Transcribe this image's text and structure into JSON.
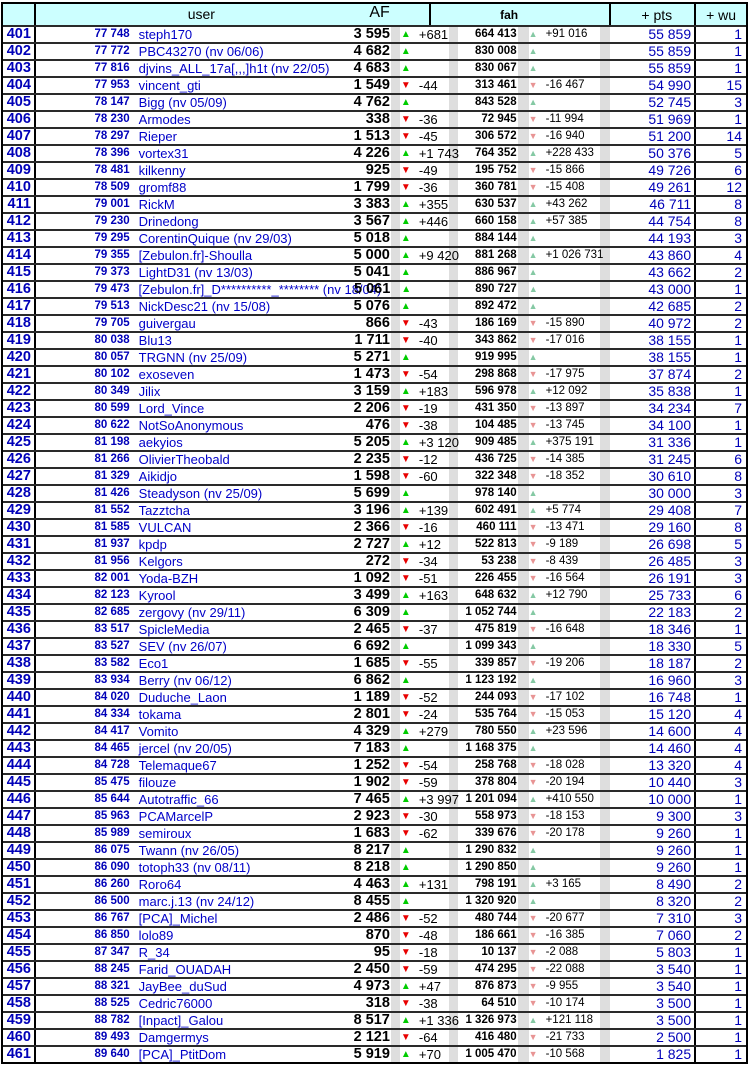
{
  "header": {
    "user": "user",
    "af": "AF",
    "fah": "fah",
    "pts": "+ pts",
    "wu": "+ wu"
  },
  "colors": {
    "header_bg": "#ccffff",
    "link_blue": "#0000c8",
    "rank_blue": "#0000b8",
    "af_up": "#00cc00",
    "af_down": "#e80000",
    "fah_up": "#85c9a4",
    "fah_down": "#e89494",
    "stripe_gray": "#dedede"
  },
  "icons": {
    "up": "up-arrow-icon",
    "down": "down-arrow-icon"
  },
  "rows": [
    {
      "rank": "401",
      "id": "77 748",
      "user": "steph170",
      "af": "3 595",
      "af_dir": "up",
      "af_delta": "+681",
      "fah": "664 413",
      "fah_dir": "up",
      "fah_delta": "+91 016",
      "pts": "55 859",
      "wu": "1"
    },
    {
      "rank": "402",
      "id": "77 772",
      "user": "PBC43270  (nv 06/06)",
      "af": "4 682",
      "af_dir": "up",
      "af_delta": "",
      "fah": "830 008",
      "fah_dir": "up",
      "fah_delta": "",
      "pts": "55 859",
      "wu": "1"
    },
    {
      "rank": "403",
      "id": "77 816",
      "user": "djvins_ALL_17a[,,,]h1t  (nv 22/05)",
      "af": "4 683",
      "af_dir": "up",
      "af_delta": "",
      "fah": "830 067",
      "fah_dir": "up",
      "fah_delta": "",
      "pts": "55 859",
      "wu": "1"
    },
    {
      "rank": "404",
      "id": "77 953",
      "user": "vincent_gti",
      "af": "1 549",
      "af_dir": "down",
      "af_delta": "-44",
      "fah": "313 461",
      "fah_dir": "down",
      "fah_delta": "-16 467",
      "pts": "54 990",
      "wu": "15"
    },
    {
      "rank": "405",
      "id": "78 147",
      "user": "Bigg  (nv 05/09)",
      "af": "4 762",
      "af_dir": "up",
      "af_delta": "",
      "fah": "843 528",
      "fah_dir": "up",
      "fah_delta": "",
      "pts": "52 745",
      "wu": "3"
    },
    {
      "rank": "406",
      "id": "78 230",
      "user": "Armodes",
      "af": "338",
      "af_dir": "down",
      "af_delta": "-36",
      "fah": "72 945",
      "fah_dir": "down",
      "fah_delta": "-11 994",
      "pts": "51 969",
      "wu": "1"
    },
    {
      "rank": "407",
      "id": "78 297",
      "user": "Rieper",
      "af": "1 513",
      "af_dir": "down",
      "af_delta": "-45",
      "fah": "306 572",
      "fah_dir": "down",
      "fah_delta": "-16 940",
      "pts": "51 200",
      "wu": "14"
    },
    {
      "rank": "408",
      "id": "78 396",
      "user": "vortex31",
      "af": "4 226",
      "af_dir": "up",
      "af_delta": "+1 743",
      "fah": "764 352",
      "fah_dir": "up",
      "fah_delta": "+228 433",
      "pts": "50 376",
      "wu": "5"
    },
    {
      "rank": "409",
      "id": "78 481",
      "user": "kilkenny",
      "af": "925",
      "af_dir": "down",
      "af_delta": "-49",
      "fah": "195 752",
      "fah_dir": "down",
      "fah_delta": "-15 866",
      "pts": "49 726",
      "wu": "6"
    },
    {
      "rank": "410",
      "id": "78 509",
      "user": "gromf88",
      "af": "1 799",
      "af_dir": "down",
      "af_delta": "-36",
      "fah": "360 781",
      "fah_dir": "down",
      "fah_delta": "-15 408",
      "pts": "49 261",
      "wu": "12"
    },
    {
      "rank": "411",
      "id": "79 001",
      "user": "RickM",
      "af": "3 383",
      "af_dir": "up",
      "af_delta": "+355",
      "fah": "630 537",
      "fah_dir": "up",
      "fah_delta": "+43 262",
      "pts": "46 711",
      "wu": "8"
    },
    {
      "rank": "412",
      "id": "79 230",
      "user": "Drinedong",
      "af": "3 567",
      "af_dir": "up",
      "af_delta": "+446",
      "fah": "660 158",
      "fah_dir": "up",
      "fah_delta": "+57 385",
      "pts": "44 754",
      "wu": "8"
    },
    {
      "rank": "413",
      "id": "79 295",
      "user": "CorentinQuique  (nv 29/03)",
      "af": "5 018",
      "af_dir": "up",
      "af_delta": "",
      "fah": "884 144",
      "fah_dir": "up",
      "fah_delta": "",
      "pts": "44 193",
      "wu": "3"
    },
    {
      "rank": "414",
      "id": "79 355",
      "user": "[Zebulon.fr]-Shoulla",
      "af": "5 000",
      "af_dir": "up",
      "af_delta": "+9 420",
      "fah": "881 268",
      "fah_dir": "up",
      "fah_delta": "+1 026 731",
      "pts": "43 860",
      "wu": "4"
    },
    {
      "rank": "415",
      "id": "79 373",
      "user": "LightD31  (nv 13/03)",
      "af": "5 041",
      "af_dir": "up",
      "af_delta": "",
      "fah": "886 967",
      "fah_dir": "up",
      "fah_delta": "",
      "pts": "43 662",
      "wu": "2"
    },
    {
      "rank": "416",
      "id": "79 473",
      "user": "[Zebulon.fr]_D**********_********  (nv 18/04)",
      "af": "5 061",
      "af_dir": "up",
      "af_delta": "",
      "fah": "890 727",
      "fah_dir": "up",
      "fah_delta": "",
      "pts": "43 000",
      "wu": "1"
    },
    {
      "rank": "417",
      "id": "79 513",
      "user": "NickDesc21  (nv 15/08)",
      "af": "5 076",
      "af_dir": "up",
      "af_delta": "",
      "fah": "892 472",
      "fah_dir": "up",
      "fah_delta": "",
      "pts": "42 685",
      "wu": "2"
    },
    {
      "rank": "418",
      "id": "79 705",
      "user": "guivergau",
      "af": "866",
      "af_dir": "down",
      "af_delta": "-43",
      "fah": "186 169",
      "fah_dir": "down",
      "fah_delta": "-15 890",
      "pts": "40 972",
      "wu": "2"
    },
    {
      "rank": "419",
      "id": "80 038",
      "user": "Blu13",
      "af": "1 711",
      "af_dir": "down",
      "af_delta": "-40",
      "fah": "343 862",
      "fah_dir": "down",
      "fah_delta": "-17 016",
      "pts": "38 155",
      "wu": "1"
    },
    {
      "rank": "420",
      "id": "80 057",
      "user": "TRGNN  (nv 25/09)",
      "af": "5 271",
      "af_dir": "up",
      "af_delta": "",
      "fah": "919 995",
      "fah_dir": "up",
      "fah_delta": "",
      "pts": "38 155",
      "wu": "1"
    },
    {
      "rank": "421",
      "id": "80 102",
      "user": "exoseven",
      "af": "1 473",
      "af_dir": "down",
      "af_delta": "-54",
      "fah": "298 868",
      "fah_dir": "down",
      "fah_delta": "-17 975",
      "pts": "37 874",
      "wu": "2"
    },
    {
      "rank": "422",
      "id": "80 349",
      "user": "Jilix",
      "af": "3 159",
      "af_dir": "up",
      "af_delta": "+183",
      "fah": "596 978",
      "fah_dir": "up",
      "fah_delta": "+12 092",
      "pts": "35 838",
      "wu": "1"
    },
    {
      "rank": "423",
      "id": "80 599",
      "user": "Lord_Vince",
      "af": "2 206",
      "af_dir": "down",
      "af_delta": "-19",
      "fah": "431 350",
      "fah_dir": "down",
      "fah_delta": "-13 897",
      "pts": "34 234",
      "wu": "7"
    },
    {
      "rank": "424",
      "id": "80 622",
      "user": "NotSoAnonymous",
      "af": "476",
      "af_dir": "down",
      "af_delta": "-38",
      "fah": "104 485",
      "fah_dir": "down",
      "fah_delta": "-13 745",
      "pts": "34 100",
      "wu": "1"
    },
    {
      "rank": "425",
      "id": "81 198",
      "user": "aekyios",
      "af": "5 205",
      "af_dir": "up",
      "af_delta": "+3 120",
      "fah": "909 485",
      "fah_dir": "up",
      "fah_delta": "+375 191",
      "pts": "31 336",
      "wu": "1"
    },
    {
      "rank": "426",
      "id": "81 266",
      "user": "OlivierTheobald",
      "af": "2 235",
      "af_dir": "down",
      "af_delta": "-12",
      "fah": "436 725",
      "fah_dir": "down",
      "fah_delta": "-14 385",
      "pts": "31 245",
      "wu": "6"
    },
    {
      "rank": "427",
      "id": "81 329",
      "user": "Aikidjo",
      "af": "1 598",
      "af_dir": "down",
      "af_delta": "-60",
      "fah": "322 348",
      "fah_dir": "down",
      "fah_delta": "-18 352",
      "pts": "30 610",
      "wu": "8"
    },
    {
      "rank": "428",
      "id": "81 426",
      "user": "Steadyson  (nv 25/09)",
      "af": "5 699",
      "af_dir": "up",
      "af_delta": "",
      "fah": "978 140",
      "fah_dir": "up",
      "fah_delta": "",
      "pts": "30 000",
      "wu": "3"
    },
    {
      "rank": "429",
      "id": "81 552",
      "user": "Tazztcha",
      "af": "3 196",
      "af_dir": "up",
      "af_delta": "+139",
      "fah": "602 491",
      "fah_dir": "up",
      "fah_delta": "+5 774",
      "pts": "29 408",
      "wu": "7"
    },
    {
      "rank": "430",
      "id": "81 585",
      "user": "VULCAN",
      "af": "2 366",
      "af_dir": "down",
      "af_delta": "-16",
      "fah": "460 111",
      "fah_dir": "down",
      "fah_delta": "-13 471",
      "pts": "29 160",
      "wu": "8"
    },
    {
      "rank": "431",
      "id": "81 937",
      "user": "kpdp",
      "af": "2 727",
      "af_dir": "up",
      "af_delta": "+12",
      "fah": "522 813",
      "fah_dir": "down",
      "fah_delta": "-9 189",
      "pts": "26 698",
      "wu": "5"
    },
    {
      "rank": "432",
      "id": "81 956",
      "user": "Kelgors",
      "af": "272",
      "af_dir": "down",
      "af_delta": "-34",
      "fah": "53 238",
      "fah_dir": "down",
      "fah_delta": "-8 439",
      "pts": "26 485",
      "wu": "3"
    },
    {
      "rank": "433",
      "id": "82 001",
      "user": "Yoda-BZH",
      "af": "1 092",
      "af_dir": "down",
      "af_delta": "-51",
      "fah": "226 455",
      "fah_dir": "down",
      "fah_delta": "-16 564",
      "pts": "26 191",
      "wu": "3"
    },
    {
      "rank": "434",
      "id": "82 123",
      "user": "Kyrool",
      "af": "3 499",
      "af_dir": "up",
      "af_delta": "+163",
      "fah": "648 632",
      "fah_dir": "up",
      "fah_delta": "+12 790",
      "pts": "25 733",
      "wu": "6"
    },
    {
      "rank": "435",
      "id": "82 685",
      "user": "zergovy  (nv 29/11)",
      "af": "6 309",
      "af_dir": "up",
      "af_delta": "",
      "fah": "1 052 744",
      "fah_dir": "up",
      "fah_delta": "",
      "pts": "22 183",
      "wu": "2"
    },
    {
      "rank": "436",
      "id": "83 517",
      "user": "SpicleMedia",
      "af": "2 465",
      "af_dir": "down",
      "af_delta": "-37",
      "fah": "475 819",
      "fah_dir": "down",
      "fah_delta": "-16 648",
      "pts": "18 346",
      "wu": "1"
    },
    {
      "rank": "437",
      "id": "83 527",
      "user": "SEV  (nv 26/07)",
      "af": "6 692",
      "af_dir": "up",
      "af_delta": "",
      "fah": "1 099 343",
      "fah_dir": "up",
      "fah_delta": "",
      "pts": "18 330",
      "wu": "5"
    },
    {
      "rank": "438",
      "id": "83 582",
      "user": "Eco1",
      "af": "1 685",
      "af_dir": "down",
      "af_delta": "-55",
      "fah": "339 857",
      "fah_dir": "down",
      "fah_delta": "-19 206",
      "pts": "18 187",
      "wu": "2"
    },
    {
      "rank": "439",
      "id": "83 934",
      "user": "Berry  (nv 06/12)",
      "af": "6 862",
      "af_dir": "up",
      "af_delta": "",
      "fah": "1 123 192",
      "fah_dir": "up",
      "fah_delta": "",
      "pts": "16 960",
      "wu": "3"
    },
    {
      "rank": "440",
      "id": "84 020",
      "user": "Duduche_Laon",
      "af": "1 189",
      "af_dir": "down",
      "af_delta": "-52",
      "fah": "244 093",
      "fah_dir": "down",
      "fah_delta": "-17 102",
      "pts": "16 748",
      "wu": "1"
    },
    {
      "rank": "441",
      "id": "84 334",
      "user": "tokama",
      "af": "2 801",
      "af_dir": "down",
      "af_delta": "-24",
      "fah": "535 764",
      "fah_dir": "down",
      "fah_delta": "-15 053",
      "pts": "15 120",
      "wu": "4"
    },
    {
      "rank": "442",
      "id": "84 417",
      "user": "Vomito",
      "af": "4 329",
      "af_dir": "up",
      "af_delta": "+279",
      "fah": "780 550",
      "fah_dir": "up",
      "fah_delta": "+23 596",
      "pts": "14 600",
      "wu": "4"
    },
    {
      "rank": "443",
      "id": "84 465",
      "user": "jercel  (nv 20/05)",
      "af": "7 183",
      "af_dir": "up",
      "af_delta": "",
      "fah": "1 168 375",
      "fah_dir": "up",
      "fah_delta": "",
      "pts": "14 460",
      "wu": "4"
    },
    {
      "rank": "444",
      "id": "84 728",
      "user": "Telemaque67",
      "af": "1 252",
      "af_dir": "down",
      "af_delta": "-54",
      "fah": "258 768",
      "fah_dir": "down",
      "fah_delta": "-18 028",
      "pts": "13 320",
      "wu": "4"
    },
    {
      "rank": "445",
      "id": "85 475",
      "user": "filouze",
      "af": "1 902",
      "af_dir": "down",
      "af_delta": "-59",
      "fah": "378 804",
      "fah_dir": "down",
      "fah_delta": "-20 194",
      "pts": "10 440",
      "wu": "3"
    },
    {
      "rank": "446",
      "id": "85 644",
      "user": "Autotraffic_66",
      "af": "7 465",
      "af_dir": "up",
      "af_delta": "+3 997",
      "fah": "1 201 094",
      "fah_dir": "up",
      "fah_delta": "+410 550",
      "pts": "10 000",
      "wu": "1"
    },
    {
      "rank": "447",
      "id": "85 963",
      "user": "PCAMarcelP",
      "af": "2 923",
      "af_dir": "down",
      "af_delta": "-30",
      "fah": "558 973",
      "fah_dir": "down",
      "fah_delta": "-18 153",
      "pts": "9 300",
      "wu": "3"
    },
    {
      "rank": "448",
      "id": "85 989",
      "user": "semiroux",
      "af": "1 683",
      "af_dir": "down",
      "af_delta": "-62",
      "fah": "339 676",
      "fah_dir": "down",
      "fah_delta": "-20 178",
      "pts": "9 260",
      "wu": "1"
    },
    {
      "rank": "449",
      "id": "86 075",
      "user": "Twann  (nv 26/05)",
      "af": "8 217",
      "af_dir": "up",
      "af_delta": "",
      "fah": "1 290 832",
      "fah_dir": "up",
      "fah_delta": "",
      "pts": "9 260",
      "wu": "1"
    },
    {
      "rank": "450",
      "id": "86 090",
      "user": "totoph33  (nv 08/11)",
      "af": "8 218",
      "af_dir": "up",
      "af_delta": "",
      "fah": "1 290 850",
      "fah_dir": "up",
      "fah_delta": "",
      "pts": "9 260",
      "wu": "1"
    },
    {
      "rank": "451",
      "id": "86 260",
      "user": "Roro64",
      "af": "4 463",
      "af_dir": "up",
      "af_delta": "+131",
      "fah": "798 191",
      "fah_dir": "up",
      "fah_delta": "+3 165",
      "pts": "8 490",
      "wu": "2"
    },
    {
      "rank": "452",
      "id": "86 500",
      "user": "marc.j.13  (nv 24/12)",
      "af": "8 455",
      "af_dir": "up",
      "af_delta": "",
      "fah": "1 320 920",
      "fah_dir": "up",
      "fah_delta": "",
      "pts": "8 320",
      "wu": "2"
    },
    {
      "rank": "453",
      "id": "86 767",
      "user": "[PCA]_Michel",
      "af": "2 486",
      "af_dir": "down",
      "af_delta": "-52",
      "fah": "480 744",
      "fah_dir": "down",
      "fah_delta": "-20 677",
      "pts": "7 310",
      "wu": "3"
    },
    {
      "rank": "454",
      "id": "86 850",
      "user": "lolo89",
      "af": "870",
      "af_dir": "down",
      "af_delta": "-48",
      "fah": "186 661",
      "fah_dir": "down",
      "fah_delta": "-16 385",
      "pts": "7 060",
      "wu": "2"
    },
    {
      "rank": "455",
      "id": "87 347",
      "user": "R_34",
      "af": "95",
      "af_dir": "down",
      "af_delta": "-18",
      "fah": "10 137",
      "fah_dir": "down",
      "fah_delta": "-2 088",
      "pts": "5 803",
      "wu": "1"
    },
    {
      "rank": "456",
      "id": "88 245",
      "user": "Farid_OUADAH",
      "af": "2 450",
      "af_dir": "down",
      "af_delta": "-59",
      "fah": "474 295",
      "fah_dir": "down",
      "fah_delta": "-22 088",
      "pts": "3 540",
      "wu": "1"
    },
    {
      "rank": "457",
      "id": "88 321",
      "user": "JayBee_duSud",
      "af": "4 973",
      "af_dir": "up",
      "af_delta": "+47",
      "fah": "876 873",
      "fah_dir": "down",
      "fah_delta": "-9 955",
      "pts": "3 540",
      "wu": "1"
    },
    {
      "rank": "458",
      "id": "88 525",
      "user": "Cedric76000",
      "af": "318",
      "af_dir": "down",
      "af_delta": "-38",
      "fah": "64 510",
      "fah_dir": "down",
      "fah_delta": "-10 174",
      "pts": "3 500",
      "wu": "1"
    },
    {
      "rank": "459",
      "id": "88 782",
      "user": "[Inpact]_Galou",
      "af": "8 517",
      "af_dir": "up",
      "af_delta": "+1 336",
      "fah": "1 326 973",
      "fah_dir": "up",
      "fah_delta": "+121 118",
      "pts": "3 500",
      "wu": "1"
    },
    {
      "rank": "460",
      "id": "89 493",
      "user": "Damgermys",
      "af": "2 121",
      "af_dir": "down",
      "af_delta": "-64",
      "fah": "416 480",
      "fah_dir": "down",
      "fah_delta": "-21 733",
      "pts": "2 500",
      "wu": "1"
    },
    {
      "rank": "461",
      "id": "89 640",
      "user": "[PCA]_PtitDom",
      "af": "5 919",
      "af_dir": "up",
      "af_delta": "+70",
      "fah": "1 005 470",
      "fah_dir": "down",
      "fah_delta": "-10 568",
      "pts": "1 825",
      "wu": "1"
    }
  ]
}
